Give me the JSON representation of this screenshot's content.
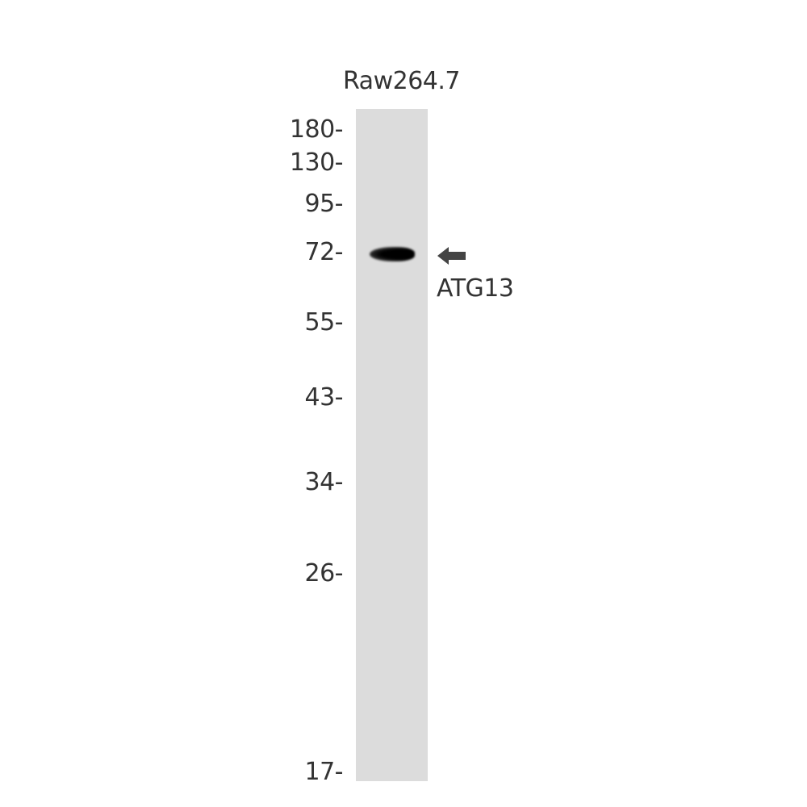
{
  "sample_label": "Raw264.7",
  "target_label": "ATG13",
  "markers": [
    "180-",
    "130-",
    "95-",
    "72-",
    "55-",
    "43-",
    "34-",
    "26-",
    "17-"
  ],
  "colors": {
    "lane": "#dcdcdc",
    "band": "#000000",
    "arrow": "#444444",
    "text": "#333333"
  },
  "icons": {
    "arrow": "arrow-left-icon"
  }
}
